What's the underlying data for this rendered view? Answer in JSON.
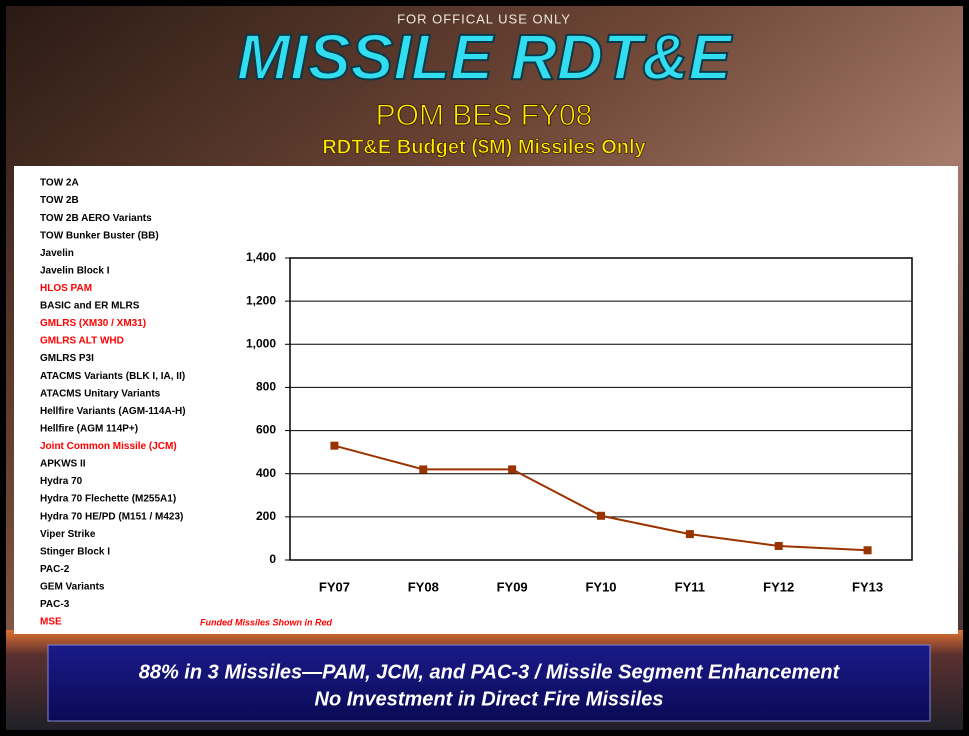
{
  "header": {
    "classification": "FOR OFFICAL USE ONLY",
    "title": "MISSILE RDT&E",
    "subtitle": "POM BES FY08",
    "caption": "RDT&E Budget ($M) Missiles Only"
  },
  "missiles": [
    {
      "name": "TOW 2A",
      "color": "#000000"
    },
    {
      "name": "TOW 2B",
      "color": "#000000"
    },
    {
      "name": "TOW 2B AERO Variants",
      "color": "#000000"
    },
    {
      "name": "TOW Bunker Buster (BB)",
      "color": "#000000"
    },
    {
      "name": "Javelin",
      "color": "#000000"
    },
    {
      "name": "Javelin Block I",
      "color": "#000000"
    },
    {
      "name": "HLOS PAM",
      "color": "#ff0000"
    },
    {
      "name": "BASIC and ER MLRS",
      "color": "#000000"
    },
    {
      "name": "GMLRS (XM30 / XM31)",
      "color": "#ff0000"
    },
    {
      "name": "GMLRS ALT WHD",
      "color": "#ff0000"
    },
    {
      "name": "GMLRS P3I",
      "color": "#000000"
    },
    {
      "name": "ATACMS Variants (BLK I, IA, II)",
      "color": "#000000"
    },
    {
      "name": "ATACMS Unitary Variants",
      "color": "#000000"
    },
    {
      "name": "Hellfire Variants (AGM-114A-H)",
      "color": "#000000"
    },
    {
      "name": "Hellfire (AGM 114P+)",
      "color": "#000000"
    },
    {
      "name": "Joint Common Missile (JCM)",
      "color": "#ff0000"
    },
    {
      "name": "APKWS II",
      "color": "#000000"
    },
    {
      "name": "Hydra 70",
      "color": "#000000"
    },
    {
      "name": "Hydra 70 Flechette (M255A1)",
      "color": "#000000"
    },
    {
      "name": "Hydra 70 HE/PD (M151 / M423)",
      "color": "#000000"
    },
    {
      "name": "Viper Strike",
      "color": "#000000"
    },
    {
      "name": "Stinger Block I",
      "color": "#000000"
    },
    {
      "name": "PAC-2",
      "color": "#000000"
    },
    {
      "name": "GEM Variants",
      "color": "#000000"
    },
    {
      "name": "PAC-3",
      "color": "#000000"
    },
    {
      "name": "MSE",
      "color": "#ff0000"
    }
  ],
  "note": "Funded Missiles Shown in Red",
  "banner": [
    "88% in 3 Missiles—PAM, JCM, and PAC-3 / Missile Segment Enhancement",
    "No Investment in Direct Fire Missiles"
  ],
  "chart_data": {
    "type": "line",
    "categories": [
      "FY07",
      "FY08",
      "FY09",
      "FY10",
      "FY11",
      "FY12",
      "FY13"
    ],
    "values": [
      530,
      420,
      420,
      205,
      120,
      65,
      45
    ],
    "color": "#993300",
    "ylim": [
      0,
      1400
    ],
    "yticks": [
      0,
      200,
      400,
      600,
      800,
      {
        "value": 1000,
        "label": "1,000"
      },
      {
        "value": 1200,
        "label": "1,200"
      },
      {
        "value": 1400,
        "label": "1,400"
      }
    ],
    "grid": true
  }
}
